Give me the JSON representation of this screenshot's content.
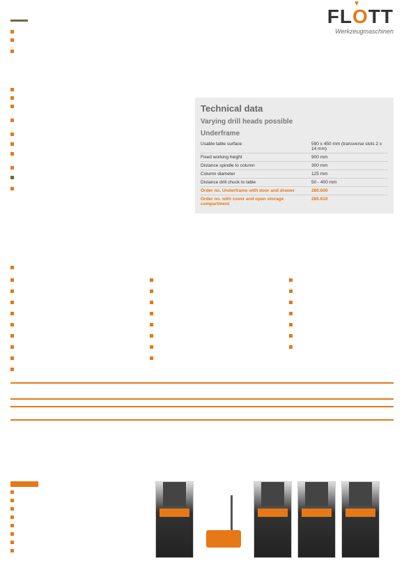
{
  "logo": {
    "brand": "FLOTT",
    "subtitle": "Werkzeugmaschinen"
  },
  "tech": {
    "title": "Technical data",
    "subtitle": "Varying drill heads possible",
    "section": "Underframe",
    "rows": [
      {
        "label": "Usable table surface",
        "value": "590 x 450 mm (transverse slots 2 x 14 mm)",
        "orange": false
      },
      {
        "label": "Fixed working height",
        "value": "900 mm",
        "orange": false
      },
      {
        "label": "Distance spindle to column",
        "value": "300 mm",
        "orange": false
      },
      {
        "label": "Column diameter",
        "value": "125 mm",
        "orange": false
      },
      {
        "label": "Distance drill chuck to table",
        "value": "50 - 400 mm",
        "orange": false
      },
      {
        "label": "Order no. Underframe with door and drawer",
        "value": "280.600",
        "orange": true
      },
      {
        "label": "Order no. with cover and open storage compartment",
        "value": "280.610",
        "orange": true
      }
    ]
  },
  "colors": {
    "accent": "#e67817",
    "dark": "#6b6b3a",
    "panel": "#ebebeb"
  }
}
